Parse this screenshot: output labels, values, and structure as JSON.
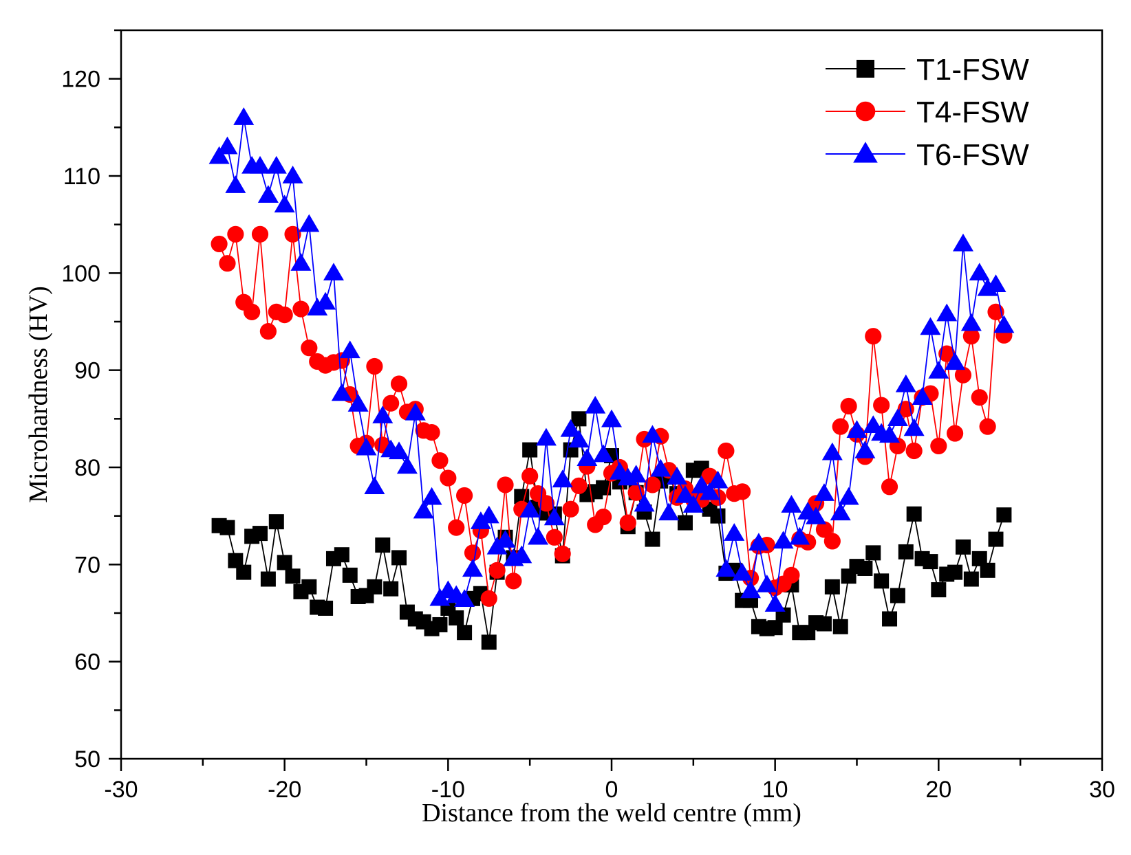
{
  "chart_data": {
    "type": "line",
    "title": "",
    "xlabel": "Distance from the weld centre (mm)",
    "ylabel": "Microhardness (HV)",
    "xlim": [
      -30,
      30
    ],
    "ylim": [
      50,
      125
    ],
    "xticks": [
      -30,
      -20,
      -10,
      0,
      10,
      20,
      30
    ],
    "yticks": [
      50,
      60,
      70,
      80,
      90,
      100,
      110,
      120
    ],
    "x_minor_step": 5,
    "y_minor_step": 5,
    "legend_position": "top-right",
    "series": [
      {
        "name": "T1-FSW",
        "color": "#000000",
        "marker": "square",
        "x": [
          -24,
          -23.5,
          -23,
          -22.5,
          -22,
          -21.5,
          -21,
          -20.5,
          -20,
          -19.5,
          -19,
          -18.5,
          -18,
          -17.5,
          -17,
          -16.5,
          -16,
          -15.5,
          -15,
          -14.5,
          -14,
          -13.5,
          -13,
          -12.5,
          -12,
          -11.5,
          -11,
          -10.5,
          -10,
          -9.5,
          -9,
          -8.5,
          -8,
          -7.5,
          -7,
          -6.5,
          -6,
          -5.5,
          -5,
          -4.5,
          -4,
          -3.5,
          -3,
          -2.5,
          -2,
          -1.5,
          -1,
          -0.5,
          0,
          0.5,
          1,
          1.5,
          2,
          2.5,
          3,
          3.5,
          4,
          4.5,
          5,
          5.5,
          6,
          6.5,
          7,
          7.5,
          8,
          8.5,
          9,
          9.5,
          10,
          10.5,
          11,
          11.5,
          12,
          12.5,
          13,
          13.5,
          14,
          14.5,
          15,
          15.5,
          16,
          16.5,
          17,
          17.5,
          18,
          18.5,
          19,
          19.5,
          20,
          20.5,
          21,
          21.5,
          22,
          22.5,
          23,
          23.5,
          24
        ],
        "y": [
          74,
          73.8,
          70.4,
          69.2,
          72.9,
          73.2,
          68.5,
          74.4,
          70.2,
          68.8,
          67.2,
          67.7,
          65.6,
          65.5,
          70.6,
          71,
          68.9,
          66.7,
          66.8,
          67.7,
          72,
          67.5,
          70.7,
          65.1,
          64.4,
          64.1,
          63.4,
          63.8,
          65.5,
          64.5,
          63,
          66.5,
          67,
          62,
          69.2,
          72.8,
          70.7,
          77,
          81.8,
          75.9,
          75.3,
          75.2,
          70.9,
          81.8,
          85,
          77.2,
          77.5,
          77.9,
          81.2,
          78.5,
          73.9,
          77.4,
          75.4,
          72.6,
          78.6,
          79,
          77.3,
          74.3,
          79.7,
          79.9,
          75.7,
          75,
          69.1,
          69.4,
          66.3,
          66.3,
          63.6,
          63.4,
          63.5,
          64.8,
          67.9,
          63,
          63,
          64,
          63.9,
          67.7,
          63.6,
          68.8,
          69.8,
          69.6,
          71.2,
          68.3,
          64.4,
          66.8,
          71.3,
          75.2,
          70.6,
          70.3,
          67.4,
          69,
          69.2,
          71.8,
          68.5,
          70.6,
          69.4,
          72.6,
          75.1
        ]
      },
      {
        "name": "T4-FSW",
        "color": "#ff0000",
        "marker": "circle",
        "x": [
          -24,
          -23.5,
          -23,
          -22.5,
          -22,
          -21.5,
          -21,
          -20.5,
          -20,
          -19.5,
          -19,
          -18.5,
          -18,
          -17.5,
          -17,
          -16.5,
          -16,
          -15.5,
          -15,
          -14.5,
          -14,
          -13.5,
          -13,
          -12.5,
          -12,
          -11.5,
          -11,
          -10.5,
          -10,
          -9.5,
          -9,
          -8.5,
          -8,
          -7.5,
          -7,
          -6.5,
          -6,
          -5.5,
          -5,
          -4.5,
          -4,
          -3.5,
          -3,
          -2.5,
          -2,
          -1.5,
          -1,
          -0.5,
          0,
          0.5,
          1,
          1.5,
          2,
          2.5,
          3,
          3.5,
          4,
          4.5,
          5,
          5.5,
          6,
          6.5,
          7,
          7.5,
          8,
          8.5,
          9,
          9.5,
          10,
          10.5,
          11,
          11.5,
          12,
          12.5,
          13,
          13.5,
          14,
          14.5,
          15,
          15.5,
          16,
          16.5,
          17,
          17.5,
          18,
          18.5,
          19,
          19.5,
          20,
          20.5,
          21,
          21.5,
          22,
          22.5,
          23,
          23.5,
          24
        ],
        "y": [
          103,
          101,
          104,
          97,
          96,
          104,
          94,
          96,
          95.7,
          104,
          96.3,
          92.3,
          90.9,
          90.5,
          90.8,
          91,
          87.5,
          82.2,
          82.5,
          90.4,
          82.3,
          86.6,
          88.6,
          85.7,
          86,
          83.8,
          83.6,
          80.7,
          78.9,
          73.8,
          77.1,
          71.2,
          73.5,
          66.5,
          69.4,
          78.2,
          68.3,
          75.7,
          79.1,
          77.3,
          76.3,
          72.8,
          71.1,
          75.7,
          78.1,
          80.1,
          74.1,
          74.9,
          79.4,
          80,
          74.3,
          77.4,
          82.9,
          78.2,
          83.2,
          79.7,
          76.9,
          77.8,
          76.7,
          76.7,
          79.1,
          76.9,
          81.7,
          77.3,
          77.5,
          68.6,
          71.9,
          72,
          67.6,
          68,
          68.9,
          72.6,
          72.3,
          76.3,
          73.6,
          72.4,
          84.2,
          86.3,
          83.4,
          81.1,
          93.5,
          86.4,
          78,
          82.2,
          86,
          81.7,
          87.2,
          87.6,
          82.2,
          91.7,
          83.5,
          89.5,
          93.5,
          87.2,
          84.2,
          96,
          93.6
        ]
      },
      {
        "name": "T6-FSW",
        "color": "#0000ff",
        "marker": "triangle",
        "x": [
          -24,
          -23.5,
          -23,
          -22.5,
          -22,
          -21.5,
          -21,
          -20.5,
          -20,
          -19.5,
          -19,
          -18.5,
          -18,
          -17.5,
          -17,
          -16.5,
          -16,
          -15.5,
          -15,
          -14.5,
          -14,
          -13.5,
          -13,
          -12.5,
          -12,
          -11.5,
          -11,
          -10.5,
          -10,
          -9.5,
          -9,
          -8.5,
          -8,
          -7.5,
          -7,
          -6.5,
          -6,
          -5.5,
          -5,
          -4.5,
          -4,
          -3.5,
          -3,
          -2.5,
          -2,
          -1.5,
          -1,
          -0.5,
          0,
          0.5,
          1,
          1.5,
          2,
          2.5,
          3,
          3.5,
          4,
          4.5,
          5,
          5.5,
          6,
          6.5,
          7,
          7.5,
          8,
          8.5,
          9,
          9.5,
          10,
          10.5,
          11,
          11.5,
          12,
          12.5,
          13,
          13.5,
          14,
          14.5,
          15,
          15.5,
          16,
          16.5,
          17,
          17.5,
          18,
          18.5,
          19,
          19.5,
          20,
          20.5,
          21,
          21.5,
          22,
          22.5,
          23,
          23.5,
          24
        ],
        "y": [
          112,
          113,
          109,
          116,
          111,
          111,
          108,
          111,
          107,
          110,
          101,
          105,
          96.4,
          97,
          100,
          87.6,
          92,
          86.5,
          82,
          78,
          85.3,
          81.8,
          81.6,
          80.1,
          85.6,
          75.5,
          76.9,
          66.5,
          67.3,
          66.8,
          66.4,
          69.5,
          74.4,
          75,
          71.8,
          72.5,
          70.6,
          70.9,
          75.6,
          72.8,
          83,
          74.8,
          78.7,
          83.9,
          82.8,
          80.9,
          86.3,
          81.3,
          84.9,
          79.5,
          78.9,
          79.2,
          76.2,
          83.3,
          79.8,
          75.3,
          79,
          77.1,
          76.1,
          78.1,
          77.4,
          78.6,
          69.5,
          73.2,
          69.1,
          67.3,
          72.2,
          67.9,
          65.9,
          72.4,
          76.1,
          72.8,
          75.4,
          74.9,
          77.3,
          81.5,
          75.3,
          76.9,
          83.8,
          81.7,
          84.3,
          83.5,
          83.3,
          85,
          88.5,
          84,
          87.2,
          94.4,
          89.9,
          95.8,
          90.8,
          103,
          94.8,
          100,
          98.4,
          98.8,
          94.6
        ]
      }
    ]
  }
}
